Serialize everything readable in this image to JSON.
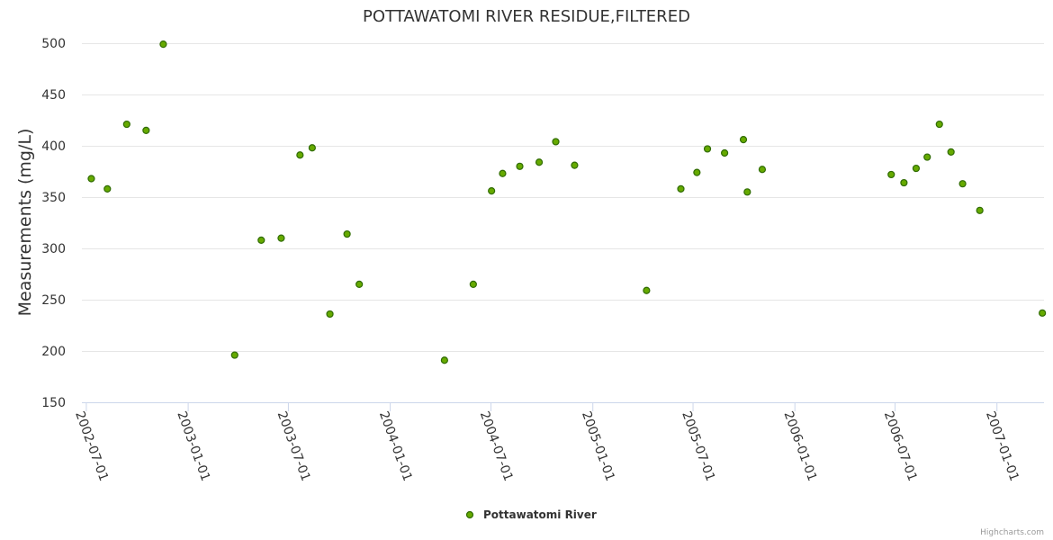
{
  "chart_data": {
    "type": "scatter",
    "title": "POTTAWATOMI RIVER RESIDUE,FILTERED",
    "ylabel": "Measurements (mg/L)",
    "xlabel": "",
    "ylim": [
      150,
      500
    ],
    "yticks": [
      150,
      200,
      250,
      300,
      350,
      400,
      450,
      500
    ],
    "xlim": [
      "2002-06-23",
      "2007-03-27"
    ],
    "xticks": [
      "2002-07-01",
      "2003-01-01",
      "2003-07-01",
      "2004-01-01",
      "2004-07-01",
      "2005-01-01",
      "2005-07-01",
      "2006-01-01",
      "2006-07-01",
      "2007-01-01"
    ],
    "point_color": "#66aa00",
    "legend": "bottom-center",
    "series": [
      {
        "name": "Pottawatomi River",
        "points": [
          {
            "x": "2002-07-10",
            "y": 368
          },
          {
            "x": "2002-08-08",
            "y": 358
          },
          {
            "x": "2002-09-12",
            "y": 421
          },
          {
            "x": "2002-10-17",
            "y": 415
          },
          {
            "x": "2002-11-17",
            "y": 499
          },
          {
            "x": "2003-03-26",
            "y": 196
          },
          {
            "x": "2003-05-13",
            "y": 308
          },
          {
            "x": "2003-06-18",
            "y": 310
          },
          {
            "x": "2003-07-22",
            "y": 391
          },
          {
            "x": "2003-08-13",
            "y": 398
          },
          {
            "x": "2003-09-14",
            "y": 236
          },
          {
            "x": "2003-10-15",
            "y": 314
          },
          {
            "x": "2003-11-06",
            "y": 265
          },
          {
            "x": "2004-04-08",
            "y": 191
          },
          {
            "x": "2004-05-30",
            "y": 265
          },
          {
            "x": "2004-07-02",
            "y": 356
          },
          {
            "x": "2004-07-22",
            "y": 373
          },
          {
            "x": "2004-08-22",
            "y": 380
          },
          {
            "x": "2004-09-26",
            "y": 384
          },
          {
            "x": "2004-10-26",
            "y": 404
          },
          {
            "x": "2004-11-29",
            "y": 381
          },
          {
            "x": "2005-04-08",
            "y": 259
          },
          {
            "x": "2005-06-09",
            "y": 358
          },
          {
            "x": "2005-07-08",
            "y": 374
          },
          {
            "x": "2005-07-27",
            "y": 397
          },
          {
            "x": "2005-08-27",
            "y": 393
          },
          {
            "x": "2005-09-30",
            "y": 406
          },
          {
            "x": "2005-10-07",
            "y": 355
          },
          {
            "x": "2005-11-03",
            "y": 377
          },
          {
            "x": "2006-06-24",
            "y": 372
          },
          {
            "x": "2006-07-17",
            "y": 364
          },
          {
            "x": "2006-08-08",
            "y": 378
          },
          {
            "x": "2006-08-28",
            "y": 389
          },
          {
            "x": "2006-09-19",
            "y": 421
          },
          {
            "x": "2006-10-10",
            "y": 394
          },
          {
            "x": "2006-10-31",
            "y": 363
          },
          {
            "x": "2006-12-01",
            "y": 337
          },
          {
            "x": "2007-03-24",
            "y": 237
          }
        ]
      }
    ]
  },
  "credits": "Highcharts.com"
}
